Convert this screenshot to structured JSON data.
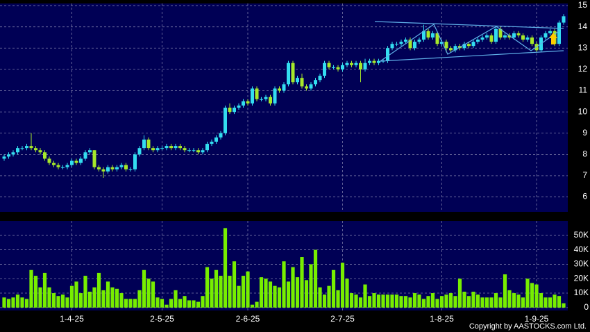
{
  "chart_data": {
    "type": "candlestick",
    "categories": [
      null,
      null,
      null,
      null,
      null,
      null,
      null,
      null,
      null,
      null,
      null,
      null,
      null,
      null,
      null,
      "1-4-25",
      null,
      null,
      null,
      null,
      null,
      null,
      null,
      null,
      null,
      null,
      null,
      null,
      null,
      null,
      null,
      null,
      null,
      null,
      null,
      "2-5-25",
      null,
      null,
      null,
      null,
      null,
      null,
      null,
      null,
      null,
      null,
      null,
      null,
      null,
      null,
      null,
      null,
      null,
      null,
      "2-6-25",
      null,
      null,
      null,
      null,
      null,
      null,
      null,
      null,
      null,
      null,
      null,
      null,
      null,
      null,
      null,
      null,
      null,
      null,
      null,
      null,
      "2-7-25",
      null,
      null,
      null,
      null,
      null,
      null,
      null,
      null,
      null,
      null,
      null,
      null,
      null,
      null,
      null,
      null,
      null,
      null,
      null,
      null,
      null,
      "1-8-25",
      null,
      null,
      null,
      null,
      null,
      null,
      null,
      null,
      null,
      null,
      null,
      null,
      null,
      null,
      null,
      null,
      null,
      null,
      null,
      null,
      "1-9-25",
      null,
      null,
      null,
      null,
      null,
      null
    ],
    "open": [
      7.8,
      7.9,
      8.0,
      8.1,
      8.3,
      8.3,
      8.4,
      8.3,
      8.2,
      8.1,
      7.8,
      7.6,
      7.5,
      7.4,
      7.4,
      7.5,
      7.7,
      7.6,
      7.8,
      8.1,
      8.2,
      7.4,
      7.3,
      7.2,
      7.4,
      7.3,
      7.4,
      7.5,
      7.3,
      7.3,
      8.0,
      8.3,
      8.7,
      8.3,
      8.2,
      8.3,
      8.3,
      8.4,
      8.3,
      8.4,
      8.3,
      8.2,
      8.2,
      8.2,
      8.1,
      8.2,
      8.5,
      8.6,
      8.8,
      9.0,
      10.2,
      10.0,
      10.2,
      10.3,
      10.5,
      10.4,
      11.1,
      10.6,
      10.6,
      10.7,
      10.4,
      11.1,
      11.0,
      11.3,
      12.3,
      11.4,
      11.6,
      11.2,
      11.1,
      11.3,
      11.5,
      11.7,
      12.3,
      12.1,
      12.1,
      12.0,
      12.2,
      12.3,
      12.2,
      12.3,
      12.0,
      12.3,
      12.4,
      12.3,
      12.4,
      12.4,
      13.0,
      13.2,
      13.2,
      13.3,
      13.4,
      13.0,
      13.3,
      13.4,
      13.8,
      13.5,
      13.7,
      13.2,
      13.3,
      13.0,
      12.9,
      13.1,
      13.0,
      13.2,
      13.1,
      13.3,
      13.4,
      13.5,
      13.6,
      13.3,
      13.9,
      13.5,
      13.6,
      13.5,
      13.7,
      13.6,
      13.4,
      13.5,
      13.2,
      12.9,
      13.5,
      13.7,
      13.8,
      13.2,
      14.2
    ],
    "high": [
      8.0,
      8.1,
      8.2,
      8.4,
      8.4,
      8.5,
      9.0,
      8.4,
      8.3,
      8.2,
      7.9,
      7.7,
      7.6,
      7.5,
      7.6,
      7.8,
      7.8,
      7.9,
      8.2,
      8.3,
      8.2,
      7.5,
      7.4,
      7.5,
      7.5,
      7.5,
      7.6,
      7.6,
      7.4,
      8.1,
      8.4,
      8.9,
      8.8,
      8.4,
      8.4,
      8.4,
      8.5,
      8.5,
      8.5,
      8.5,
      8.4,
      8.3,
      8.3,
      8.3,
      8.3,
      8.6,
      8.7,
      8.9,
      9.1,
      10.3,
      10.4,
      10.3,
      10.4,
      10.6,
      10.6,
      11.2,
      11.2,
      10.7,
      10.8,
      10.8,
      11.2,
      11.2,
      11.4,
      12.4,
      12.4,
      11.7,
      11.8,
      11.3,
      11.4,
      11.6,
      11.8,
      12.4,
      12.4,
      12.2,
      12.2,
      12.3,
      12.4,
      12.4,
      12.4,
      12.4,
      12.5,
      12.5,
      12.5,
      12.5,
      12.5,
      13.1,
      13.3,
      13.3,
      13.4,
      13.5,
      13.5,
      13.4,
      13.5,
      14.1,
      13.9,
      13.8,
      13.8,
      13.4,
      13.4,
      13.1,
      13.2,
      13.2,
      13.3,
      13.3,
      13.4,
      13.5,
      13.6,
      13.7,
      13.7,
      14.0,
      14.0,
      13.7,
      13.7,
      13.8,
      13.8,
      13.7,
      13.6,
      13.6,
      13.3,
      13.6,
      13.8,
      13.9,
      13.9,
      14.3,
      14.6
    ],
    "low": [
      7.7,
      7.8,
      7.9,
      8.0,
      8.2,
      8.2,
      8.2,
      8.1,
      8.0,
      7.7,
      7.5,
      7.4,
      7.3,
      7.3,
      7.3,
      7.4,
      7.5,
      7.5,
      7.7,
      8.0,
      7.3,
      7.2,
      6.9,
      7.1,
      7.2,
      7.2,
      7.3,
      7.2,
      7.2,
      7.2,
      7.9,
      8.2,
      8.2,
      8.1,
      8.1,
      8.2,
      8.2,
      8.2,
      8.2,
      8.2,
      8.1,
      8.1,
      8.1,
      8.0,
      8.0,
      8.1,
      8.4,
      8.5,
      8.7,
      8.9,
      9.9,
      9.9,
      10.1,
      10.2,
      10.3,
      10.3,
      10.5,
      10.5,
      10.5,
      10.3,
      10.3,
      10.9,
      10.9,
      11.2,
      11.3,
      11.3,
      11.1,
      11.0,
      11.0,
      11.2,
      11.4,
      11.6,
      12.0,
      12.0,
      11.9,
      11.9,
      12.1,
      12.1,
      12.1,
      11.4,
      11.9,
      12.2,
      12.2,
      12.2,
      12.3,
      12.3,
      12.9,
      13.1,
      13.1,
      13.2,
      12.9,
      12.9,
      13.2,
      13.3,
      13.4,
      13.4,
      13.1,
      13.1,
      12.8,
      12.8,
      12.8,
      12.9,
      12.9,
      13.0,
      13.0,
      13.2,
      13.3,
      13.4,
      13.2,
      13.2,
      13.4,
      13.4,
      13.4,
      13.4,
      13.5,
      13.3,
      13.3,
      13.1,
      12.8,
      12.8,
      13.4,
      13.6,
      13.1,
      13.1,
      14.1
    ],
    "close": [
      7.9,
      8.0,
      8.1,
      8.3,
      8.3,
      8.4,
      8.3,
      8.2,
      8.1,
      7.8,
      7.6,
      7.5,
      7.4,
      7.4,
      7.5,
      7.7,
      7.6,
      7.8,
      8.1,
      8.2,
      7.4,
      7.3,
      7.2,
      7.4,
      7.3,
      7.4,
      7.5,
      7.3,
      7.3,
      8.0,
      8.3,
      8.7,
      8.3,
      8.2,
      8.3,
      8.3,
      8.4,
      8.3,
      8.4,
      8.3,
      8.2,
      8.2,
      8.2,
      8.1,
      8.2,
      8.5,
      8.6,
      8.8,
      9.0,
      10.2,
      10.0,
      10.2,
      10.3,
      10.5,
      10.4,
      11.1,
      10.6,
      10.6,
      10.7,
      10.4,
      11.1,
      11.0,
      11.3,
      12.3,
      11.4,
      11.6,
      11.2,
      11.1,
      11.3,
      11.5,
      11.7,
      12.3,
      12.1,
      12.1,
      12.0,
      12.2,
      12.3,
      12.2,
      12.3,
      12.0,
      12.3,
      12.4,
      12.3,
      12.4,
      12.4,
      13.0,
      13.2,
      13.2,
      13.3,
      13.4,
      13.0,
      13.3,
      13.4,
      13.8,
      13.5,
      13.7,
      13.2,
      13.3,
      13.0,
      12.9,
      13.1,
      13.0,
      13.2,
      13.1,
      13.3,
      13.4,
      13.5,
      13.6,
      13.3,
      13.9,
      13.5,
      13.6,
      13.5,
      13.7,
      13.6,
      13.4,
      13.5,
      13.2,
      12.9,
      13.5,
      13.7,
      13.8,
      13.2,
      14.2,
      14.5
    ],
    "volume": [
      7000,
      6000,
      7000,
      9000,
      7000,
      6000,
      26000,
      22000,
      14000,
      24000,
      14000,
      10000,
      8000,
      9000,
      7000,
      15000,
      18000,
      10000,
      22000,
      11000,
      14000,
      24000,
      12000,
      18000,
      14000,
      13000,
      10000,
      6000,
      6000,
      6000,
      12000,
      26000,
      20000,
      18000,
      7000,
      6000,
      2000,
      6000,
      12000,
      6000,
      8000,
      5000,
      5000,
      4000,
      8000,
      28000,
      20000,
      26000,
      22000,
      55000,
      22000,
      32000,
      15000,
      22000,
      25000,
      2000,
      4000,
      21000,
      20000,
      18000,
      15000,
      14000,
      32000,
      18000,
      28000,
      21000,
      35000,
      19000,
      30000,
      40000,
      14000,
      9000,
      15000,
      26000,
      12000,
      31000,
      20000,
      10000,
      9000,
      7000,
      16000,
      8000,
      10000,
      9000,
      9000,
      9000,
      9000,
      9000,
      8000,
      8000,
      7000,
      10000,
      9000,
      6000,
      8000,
      10000,
      6000,
      8000,
      9000,
      10000,
      8000,
      20000,
      11000,
      8000,
      11000,
      9000,
      7000,
      7000,
      7000,
      10000,
      7000,
      23000,
      12000,
      10000,
      9000,
      7000,
      20000,
      17000,
      16000,
      10000,
      7000,
      7000,
      9000,
      8000,
      3000
    ],
    "ylim": [
      5.3,
      15.1
    ],
    "yticks": [
      6,
      7,
      8,
      9,
      10,
      11,
      12,
      13,
      14,
      15
    ],
    "volume_ylim": [
      -2000,
      60000
    ],
    "volume_yticks": [
      0,
      {
        "value": 10000,
        "label": "10K"
      },
      {
        "value": 20000,
        "label": "20K"
      },
      {
        "value": 30000,
        "label": "30K"
      },
      {
        "value": 40000,
        "label": "40K"
      },
      {
        "value": 50000,
        "label": "50K"
      }
    ],
    "up_color": "#33ddf0",
    "down_color": "#a6e82a",
    "volume_color": "#77ee00",
    "grid": true,
    "copyright": "Copyright by AASTOCKS.com Ltd."
  }
}
